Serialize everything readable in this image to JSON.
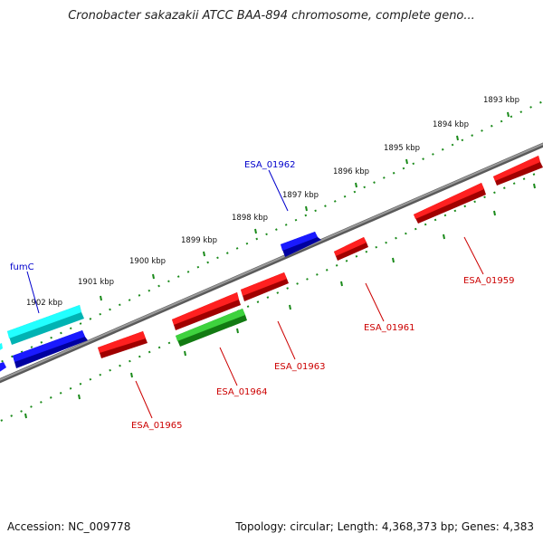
{
  "title": "Cronobacter sakazakii ATCC BAA-894 chromosome, complete geno...",
  "footer": {
    "accession": "Accession: NC_009778",
    "summary": "Topology: circular; Length: 4,368,373 bp; Genes: 4,383"
  },
  "ticks": [
    "1893 kbp",
    "1894 kbp",
    "1895 kbp",
    "1896 kbp",
    "1897 kbp",
    "1898 kbp",
    "1899 kbp",
    "1900 kbp",
    "1901 kbp",
    "1902 kbp"
  ],
  "genes": [
    {
      "name": "fumC",
      "strand": "forward",
      "color": "#00e5e5"
    },
    {
      "name": "ESA_01962",
      "strand": "forward",
      "color": "#0000e0"
    },
    {
      "name": "ESA_01959",
      "strand": "reverse",
      "color": "#e00000"
    },
    {
      "name": "ESA_01961",
      "strand": "reverse",
      "color": "#e00000"
    },
    {
      "name": "ESA_01963",
      "strand": "reverse",
      "color": "#e00000"
    },
    {
      "name": "ESA_01964",
      "strand": "reverse",
      "color": "#22b822"
    },
    {
      "name": "ESA_01965",
      "strand": "reverse",
      "color": "#e00000"
    }
  ],
  "colors": {
    "backbone": "#808080",
    "tick_track": "#1a8a1a",
    "forward_label": "#0000cc",
    "reverse_label": "#cc0000"
  }
}
